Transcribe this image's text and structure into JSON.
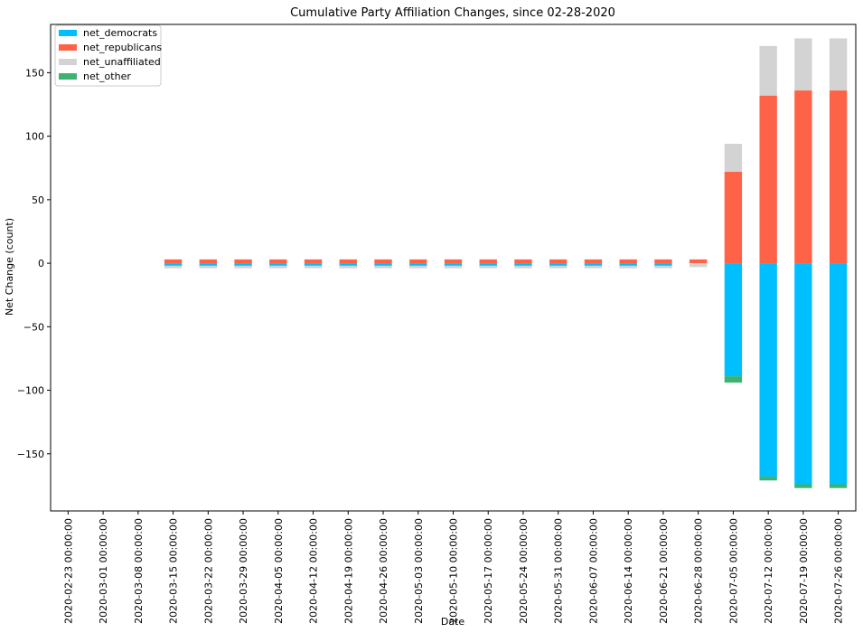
{
  "chart_data": {
    "type": "bar",
    "stacked": true,
    "title": "Cumulative Party Affiliation Changes, since 02-28-2020",
    "xlabel": "Date",
    "ylabel": "Net Change (count)",
    "ylim": [
      -195,
      188
    ],
    "yticks": [
      -150,
      -100,
      -50,
      0,
      50,
      100,
      150
    ],
    "ytick_labels": [
      "−150",
      "−100",
      "−50",
      "0",
      "50",
      "100",
      "150"
    ],
    "legend_position": "top-left",
    "categories": [
      "2020-02-23 00:00:00",
      "2020-03-01 00:00:00",
      "2020-03-08 00:00:00",
      "2020-03-15 00:00:00",
      "2020-03-22 00:00:00",
      "2020-03-29 00:00:00",
      "2020-04-05 00:00:00",
      "2020-04-12 00:00:00",
      "2020-04-19 00:00:00",
      "2020-04-26 00:00:00",
      "2020-05-03 00:00:00",
      "2020-05-10 00:00:00",
      "2020-05-17 00:00:00",
      "2020-05-24 00:00:00",
      "2020-05-31 00:00:00",
      "2020-06-07 00:00:00",
      "2020-06-14 00:00:00",
      "2020-06-21 00:00:00",
      "2020-06-28 00:00:00",
      "2020-07-05 00:00:00",
      "2020-07-12 00:00:00",
      "2020-07-19 00:00:00",
      "2020-07-26 00:00:00"
    ],
    "series": [
      {
        "name": "net_democrats",
        "color": "#00bfff",
        "values": [
          0,
          0,
          0,
          -2,
          -2,
          -2,
          -2,
          -2,
          -2,
          -2,
          -2,
          -2,
          -2,
          -2,
          -2,
          -2,
          -2,
          -2,
          0,
          -89,
          -168,
          -174,
          -174
        ]
      },
      {
        "name": "net_republicans",
        "color": "#ff6347",
        "values": [
          0,
          0,
          0,
          3,
          3,
          3,
          3,
          3,
          3,
          3,
          3,
          3,
          3,
          3,
          3,
          3,
          3,
          3,
          3,
          72,
          132,
          136,
          136
        ]
      },
      {
        "name": "net_unaffiliated",
        "color": "#d3d3d3",
        "values": [
          0,
          0,
          0,
          -2,
          -2,
          -2,
          -2,
          -2,
          -2,
          -2,
          -2,
          -2,
          -2,
          -2,
          -2,
          -2,
          -2,
          -2,
          -3,
          22,
          39,
          41,
          41
        ]
      },
      {
        "name": "net_other",
        "color": "#3cb371",
        "values": [
          0,
          0,
          0,
          0,
          0,
          0,
          0,
          0,
          0,
          0,
          0,
          0,
          0,
          0,
          0,
          0,
          0,
          0,
          0,
          -5,
          -3,
          -3,
          -3
        ]
      }
    ]
  }
}
